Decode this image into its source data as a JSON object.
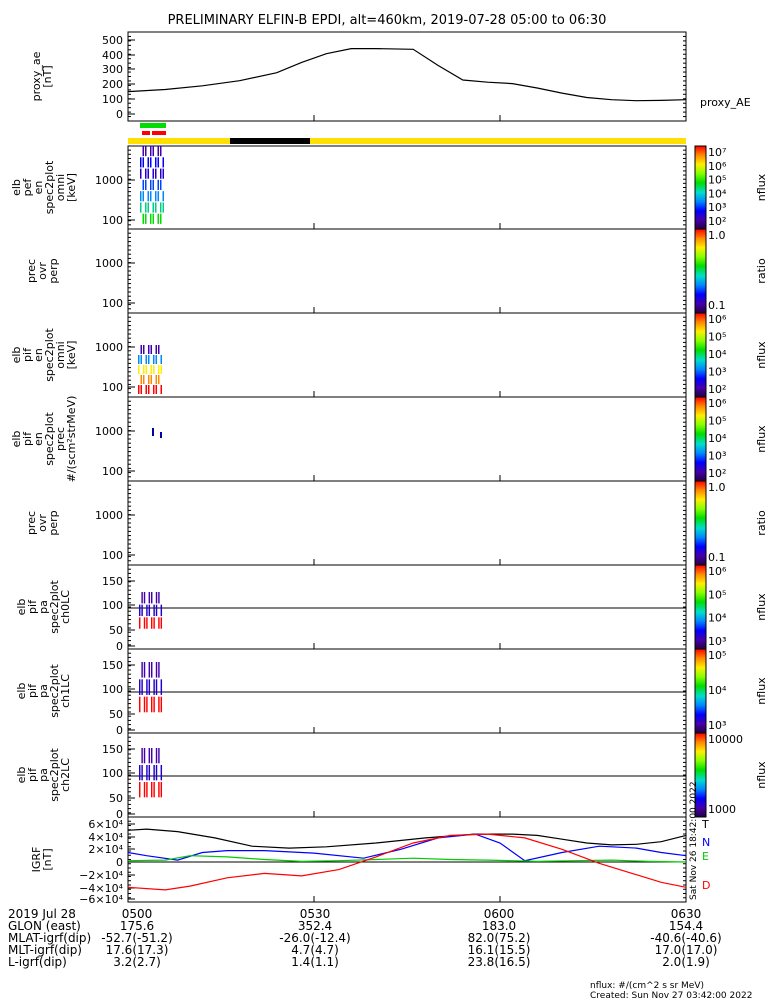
{
  "title": "PRELIMINARY ELFIN-B EPDI, alt=460km, 2019-07-28 05:00 to 06:30",
  "x_start_min": 0,
  "x_end_min": 90,
  "panels": [
    {
      "key": "ae",
      "ylabel": [
        "proxy_ae",
        "[nT]"
      ],
      "yticks": [
        "500",
        "400",
        "300",
        "200",
        "100",
        "0"
      ],
      "right_label": "proxy_AE"
    },
    {
      "key": "pef",
      "ylabel": [
        "elb",
        "pef",
        "en",
        "spec2plot",
        "omni",
        "[keV]"
      ],
      "yticks": [
        "1000",
        "100"
      ],
      "cbar_label": "nflux",
      "cbar_ticks": [
        "10⁷",
        "10⁶",
        "10⁵",
        "10⁴",
        "10³",
        "10²"
      ]
    },
    {
      "key": "ratio1",
      "ylabel": [
        "prec",
        "ovr",
        "perp"
      ],
      "yticks": [
        "1000",
        "100"
      ],
      "cbar_label": "ratio",
      "cbar_ticks": [
        "1.0",
        "0.1"
      ]
    },
    {
      "key": "pif",
      "ylabel": [
        "elb",
        "pif",
        "en",
        "spec2plot",
        "omni",
        "[keV]"
      ],
      "yticks": [
        "1000",
        "100"
      ],
      "cbar_label": "nflux",
      "cbar_ticks": [
        "10⁶",
        "10⁵",
        "10⁴",
        "10³",
        "10²"
      ]
    },
    {
      "key": "pifprec",
      "ylabel": [
        "elb",
        "pif",
        "en",
        "spec2plot",
        "prec",
        "#/(scm²strMeV)"
      ],
      "yticks": [
        "1000",
        "100"
      ],
      "cbar_label": "nflux",
      "cbar_ticks": [
        "10⁶",
        "10⁵",
        "10⁴",
        "10³",
        "10²"
      ]
    },
    {
      "key": "ratio2",
      "ylabel": [
        "prec",
        "ovr",
        "perp"
      ],
      "yticks": [
        "1000",
        "100"
      ],
      "cbar_label": "ratio",
      "cbar_ticks": [
        "1.0",
        "0.1"
      ]
    },
    {
      "key": "ch0",
      "ylabel": [
        "elb",
        "pif",
        "pa",
        "spec2plot",
        "ch0LC"
      ],
      "yticks": [
        "150",
        "100",
        "50",
        "0"
      ],
      "cbar_label": "nflux",
      "cbar_ticks": [
        "10⁶",
        "10⁵",
        "10⁴",
        "10³"
      ]
    },
    {
      "key": "ch1",
      "ylabel": [
        "elb",
        "pif",
        "pa",
        "spec2plot",
        "ch1LC"
      ],
      "yticks": [
        "150",
        "100",
        "50",
        "0"
      ],
      "cbar_label": "nflux",
      "cbar_ticks": [
        "10⁵",
        "10⁴",
        "10³"
      ]
    },
    {
      "key": "ch2",
      "ylabel": [
        "elb",
        "pif",
        "pa",
        "spec2plot",
        "ch2LC"
      ],
      "yticks": [
        "150",
        "100",
        "50",
        "0"
      ],
      "cbar_label": "nflux",
      "cbar_ticks": [
        "10000",
        "1000"
      ]
    },
    {
      "key": "igrf",
      "ylabel": [
        "IGRF",
        "[nT]"
      ],
      "yticks": [
        "6×10⁴",
        "4×10⁴",
        "2×10⁴",
        "0",
        "−2×10⁴",
        "−4×10⁴",
        "−6×10⁴"
      ],
      "legend": [
        "T",
        "N",
        "E",
        "D"
      ],
      "stamp": "Sat Nov 26 18:42:00 2022"
    }
  ],
  "orbit_bar": {
    "colors": {
      "yellow": "#ffe000",
      "black": "#000000",
      "green": "#00dd00",
      "red": "#ff0000"
    }
  },
  "footer": {
    "rows": [
      {
        "label": "2019 Jul 28",
        "values": [
          "0500",
          "0530",
          "0600",
          "0630"
        ]
      },
      {
        "label": "GLON (east)",
        "values": [
          "175.6",
          "352.4",
          "183.0",
          "154.4"
        ]
      },
      {
        "label": "MLAT-igrf(dip)",
        "values": [
          "-52.7(-51.2)",
          "-26.0(-12.4)",
          "82.0(75.2)",
          "-40.6(-40.6)"
        ]
      },
      {
        "label": "MLT-igrf(dip)",
        "values": [
          "17.6(17.3)",
          "4.7(4.7)",
          "16.1(15.5)",
          "17.0(17.0)"
        ]
      },
      {
        "label": "L-igrf(dip)",
        "values": [
          "3.2(2.7)",
          "1.4(1.1)",
          "23.8(16.5)",
          "2.0(1.9)"
        ]
      }
    ],
    "note1": "nflux: #/(cm^2 s sr MeV)",
    "note2": "Created: Sun Nov 27 03:42:00 2022"
  },
  "chart_data": {
    "type": "line",
    "series": [
      {
        "name": "proxy_AE",
        "x": [
          0,
          6,
          12,
          18,
          24,
          28,
          32,
          36,
          40,
          46,
          50,
          54,
          58,
          62,
          66,
          70,
          74,
          78,
          82,
          86,
          90
        ],
        "values": [
          160,
          175,
          200,
          235,
          290,
          360,
          420,
          455,
          455,
          450,
          340,
          240,
          225,
          215,
          185,
          150,
          120,
          105,
          98,
          100,
          105
        ]
      },
      {
        "name": "T",
        "x": [
          0,
          3,
          8,
          14,
          20,
          26,
          32,
          40,
          48,
          56,
          62,
          66,
          70,
          74,
          78,
          82,
          86,
          90
        ],
        "values": [
          50000,
          52000,
          48000,
          38000,
          25000,
          22000,
          24000,
          30000,
          38000,
          44000,
          44000,
          42000,
          36000,
          30000,
          27000,
          28000,
          32000,
          42000
        ]
      },
      {
        "name": "N",
        "x": [
          0,
          3,
          8,
          12,
          16,
          22,
          30,
          38,
          44,
          50,
          56,
          60,
          64,
          70,
          76,
          82,
          86,
          90
        ],
        "values": [
          15000,
          10000,
          3000,
          15000,
          18000,
          18000,
          14000,
          6000,
          20000,
          38000,
          44000,
          30000,
          2000,
          15000,
          25000,
          22000,
          15000,
          10000
        ]
      },
      {
        "name": "E",
        "x": [
          0,
          6,
          10,
          16,
          22,
          28,
          34,
          40,
          46,
          52,
          58,
          62,
          66,
          72,
          78,
          84,
          90
        ],
        "values": [
          2000,
          3000,
          10000,
          8000,
          4000,
          1000,
          2000,
          4000,
          6000,
          4000,
          3000,
          2000,
          1000,
          2000,
          3000,
          1000,
          0
        ]
      },
      {
        "name": "D",
        "x": [
          0,
          6,
          10,
          16,
          22,
          28,
          34,
          40,
          46,
          52,
          58,
          64,
          70,
          76,
          82,
          86,
          90
        ],
        "values": [
          -40000,
          -44000,
          -38000,
          -25000,
          -18000,
          -22000,
          -12000,
          8000,
          30000,
          42000,
          44000,
          38000,
          20000,
          -2000,
          -20000,
          -32000,
          -40000
        ]
      }
    ]
  }
}
